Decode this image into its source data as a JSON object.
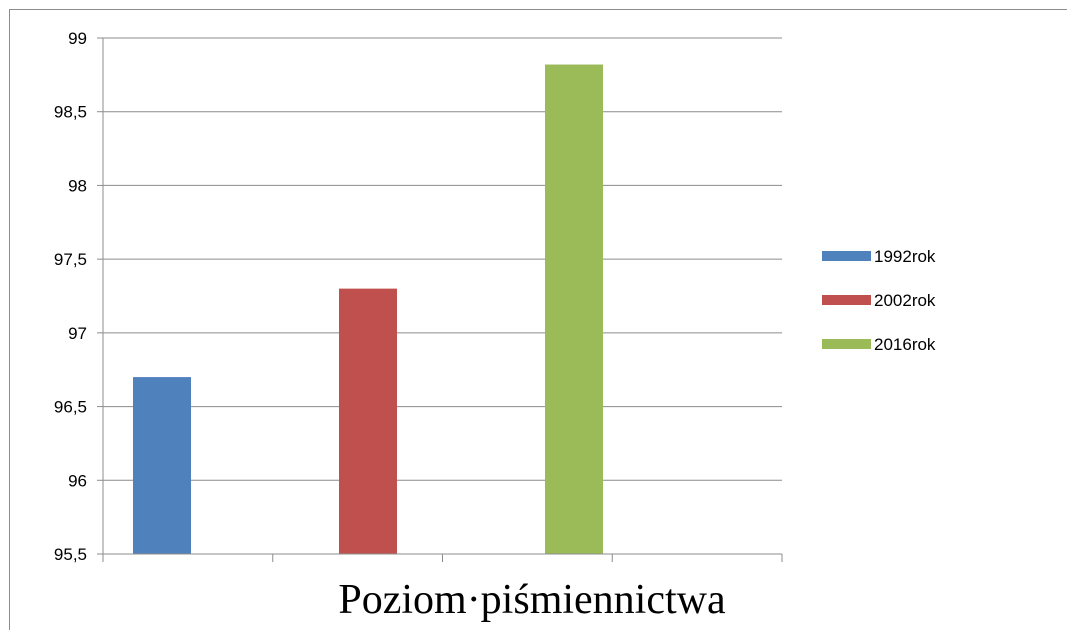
{
  "chart_data": {
    "type": "bar",
    "title": "",
    "xlabel": "Poziom·piśmiennictwa",
    "ylabel": "",
    "ylim": [
      95.5,
      99
    ],
    "yticks": [
      "95,5",
      "96",
      "96,5",
      "97",
      "97,5",
      "98",
      "98,5",
      "99"
    ],
    "ytick_values": [
      95.5,
      96,
      96.5,
      97,
      97.5,
      98,
      98.5,
      99
    ],
    "grid": true,
    "legend_position": "right",
    "series": [
      {
        "name": "1992rok",
        "values": [
          96.7
        ],
        "color": "#4f81bd"
      },
      {
        "name": "2002rok",
        "values": [
          97.3
        ],
        "color": "#c0504d"
      },
      {
        "name": "2016rok",
        "values": [
          98.82
        ],
        "color": "#9bbb59"
      }
    ]
  }
}
